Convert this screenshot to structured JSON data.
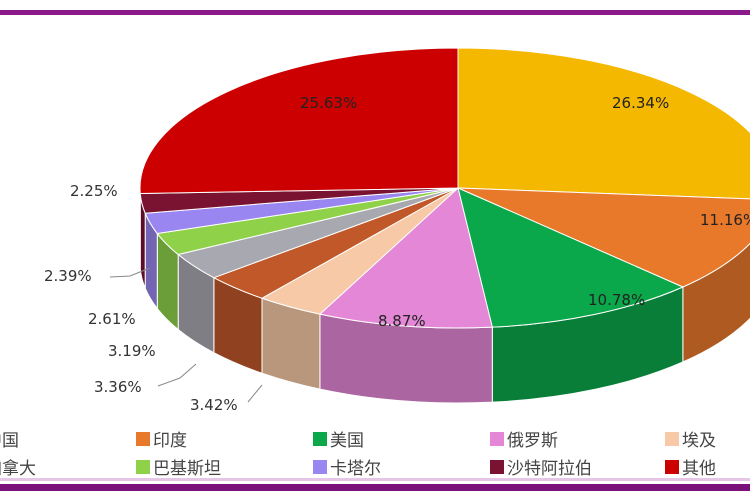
{
  "chart_data": {
    "type": "pie",
    "style": "3d",
    "slices": [
      {
        "legend": "中国",
        "value": 26.34,
        "label": "26.34%",
        "color": "#f5b800"
      },
      {
        "legend": "印度",
        "value": 11.16,
        "label": "11.16%",
        "color": "#e8782a"
      },
      {
        "legend": "美国",
        "value": 10.78,
        "label": "10.78%",
        "color": "#0aa84a"
      },
      {
        "legend": "俄罗斯",
        "value": 8.87,
        "label": "8.87%",
        "color": "#e487d6"
      },
      {
        "legend": "埃及",
        "value": 3.42,
        "label": "3.42%",
        "color": "#f7c9a6"
      },
      {
        "legend": "",
        "value": 3.36,
        "label": "3.36%",
        "color": "#c0582a"
      },
      {
        "legend": "加拿大",
        "value": 3.19,
        "label": "3.19%",
        "color": "#a8a8b0"
      },
      {
        "legend": "巴基斯坦",
        "value": 2.61,
        "label": "2.61%",
        "color": "#8fd24a"
      },
      {
        "legend": "卡塔尔",
        "value": 2.39,
        "label": "2.39%",
        "color": "#9a86f0"
      },
      {
        "legend": "沙特阿拉伯",
        "value": 2.25,
        "label": "2.25%",
        "color": "#7a1232"
      },
      {
        "legend": "其他",
        "value": 25.63,
        "label": "25.63%",
        "color": "#cc0000"
      }
    ],
    "legend": [
      {
        "name": "中国",
        "color": "#f5b800"
      },
      {
        "name": "印度",
        "color": "#e8782a"
      },
      {
        "name": "美国",
        "color": "#0aa84a"
      },
      {
        "name": "俄罗斯",
        "color": "#e487d6"
      },
      {
        "name": "埃及",
        "color": "#f7c9a6"
      },
      {
        "name": "加拿大",
        "color": "#a8a8b0"
      },
      {
        "name": "巴基斯坦",
        "color": "#8fd24a"
      },
      {
        "name": "卡塔尔",
        "color": "#9a86f0"
      },
      {
        "name": "沙特阿拉伯",
        "color": "#7a1232"
      },
      {
        "name": "其他",
        "color": "#cc0000"
      }
    ],
    "legend_position": "bottom"
  }
}
